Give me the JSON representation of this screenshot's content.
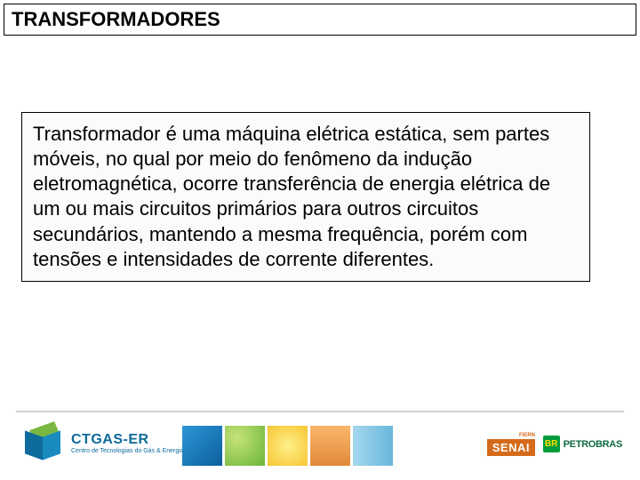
{
  "title": "TRANSFORMADORES",
  "body_text": "Transformador é uma máquina elétrica estática, sem partes móveis, no qual por meio do fenômeno da indução eletromagnética, ocorre transferência de energia elétrica de um ou mais circuitos primários para outros circuitos secundários, mantendo a mesma frequência, porém com tensões e intensidades de corrente diferentes.",
  "styling": {
    "page_bg": "#ffffff",
    "title_fontsize": 22,
    "title_weight": "bold",
    "title_border": "#000000",
    "body_fontsize": 22,
    "body_border": "#000000",
    "body_bg": "#fdfafd"
  },
  "footer": {
    "ctgas": {
      "name": "CTGAS-ER",
      "subtitle": "Centro de Tecnologias do Gás & Energias Renováveis",
      "cube_colors": {
        "top": "#7ab843",
        "left": "#0e6b9c",
        "right": "#1a8bbf"
      },
      "text_color": "#0e6b9c"
    },
    "tiles": [
      {
        "name": "blue",
        "colors": [
          "#2b96d6",
          "#0e5f9c"
        ]
      },
      {
        "name": "green",
        "colors": [
          "#c6e37a",
          "#6bb53b"
        ]
      },
      {
        "name": "yellow",
        "colors": [
          "#fff08a",
          "#f6c531"
        ]
      },
      {
        "name": "orange",
        "colors": [
          "#fbb66b",
          "#e08a3a"
        ]
      },
      {
        "name": "lightblue",
        "colors": [
          "#a7d8ee",
          "#68b7db"
        ]
      }
    ],
    "senai": {
      "fiern": "FIERN",
      "label": "SENAI",
      "bg": "#d46a1a",
      "fg": "#ffffff"
    },
    "petrobras": {
      "br": "BR",
      "label": "PETROBRAS",
      "br_bg": "#009c3b",
      "br_fg": "#ffdf00",
      "text_color": "#0e6b3f"
    }
  }
}
